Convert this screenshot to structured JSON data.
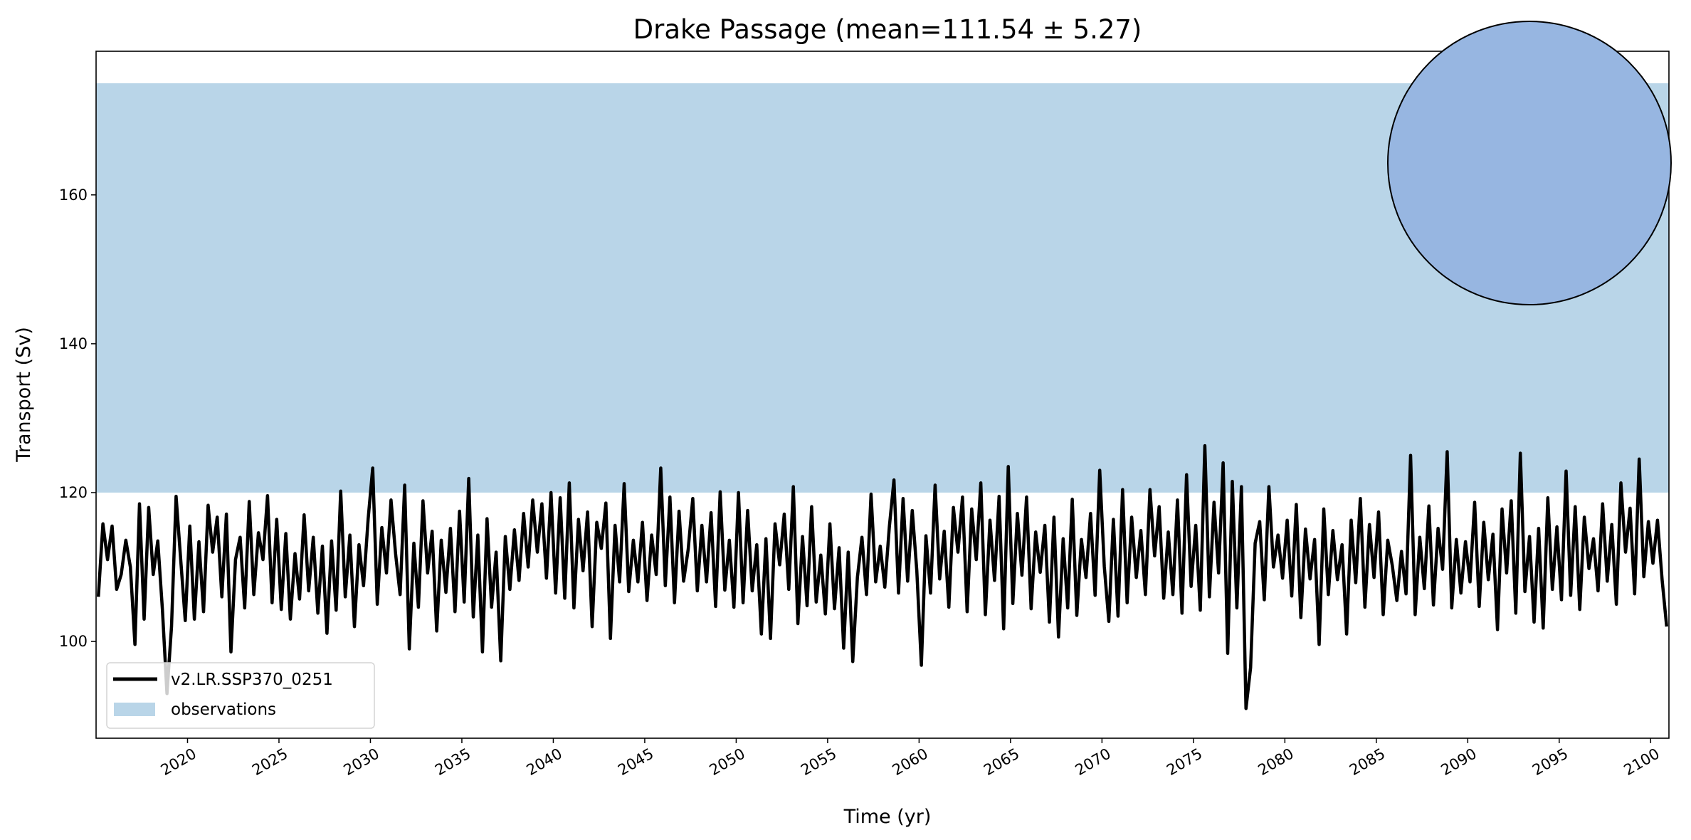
{
  "chart_data": {
    "type": "line",
    "title": "Drake Passage (mean=111.54 ± 5.27)",
    "xlabel": "Time (yr)",
    "ylabel": "Transport (Sv)",
    "xlim": [
      2015,
      2101
    ],
    "ylim": [
      87,
      179.3
    ],
    "xticks": [
      2020,
      2025,
      2030,
      2035,
      2040,
      2045,
      2050,
      2055,
      2060,
      2065,
      2070,
      2075,
      2080,
      2085,
      2090,
      2095,
      2100
    ],
    "yticks": [
      100,
      120,
      140,
      160
    ],
    "grid": false,
    "legend_placement": "lower-left",
    "observations_band": {
      "name": "observations",
      "ymin": 120,
      "ymax": 175,
      "color": "#b9d5e8"
    },
    "series": [
      {
        "name": "v2.LR.SSP370_0251",
        "color": "#000000",
        "x_start": 2015.125,
        "x_step": 0.25,
        "values": [
          106,
          115.8,
          111,
          115.5,
          107,
          109,
          113.6,
          110,
          99.6,
          118.5,
          103,
          118,
          109,
          113.5,
          104.3,
          93,
          102,
          119.5,
          111,
          102.8,
          115.5,
          103,
          113.4,
          104,
          118.3,
          112,
          116.7,
          106,
          117.1,
          98.6,
          111,
          114,
          104.5,
          118.8,
          106.3,
          114.6,
          111,
          119.6,
          105.2,
          116.4,
          104.3,
          114.5,
          103,
          111.8,
          105.7,
          117,
          106.8,
          114,
          103.8,
          112.8,
          101.1,
          113.5,
          104.2,
          120.2,
          106,
          114.3,
          102,
          113,
          107.5,
          116.5,
          123.3,
          105,
          115.3,
          109.2,
          119,
          111.8,
          106.3,
          121,
          99,
          113.2,
          104.6,
          118.9,
          109.2,
          114.8,
          101.4,
          113.6,
          106.6,
          115.2,
          104,
          117.5,
          105.3,
          121.9,
          103.3,
          114.3,
          98.6,
          116.5,
          104.6,
          112,
          97.4,
          114.1,
          107,
          115,
          108.2,
          117.2,
          110,
          119,
          112,
          118.5,
          108.5,
          120,
          106.5,
          119.3,
          105.8,
          121.3,
          104.5,
          116.4,
          109.5,
          117.4,
          102,
          116,
          112.5,
          118.6,
          100.4,
          115.6,
          108,
          121.2,
          106.7,
          113.6,
          108,
          116,
          105.5,
          114.3,
          109,
          123.3,
          107.5,
          119.4,
          105.2,
          117.5,
          108.1,
          112.4,
          119.2,
          106.8,
          115.6,
          108,
          117.3,
          104.7,
          120.1,
          106.9,
          113.6,
          104.6,
          120,
          105.2,
          117.6,
          106.8,
          113,
          101,
          113.8,
          100.4,
          115.8,
          110.3,
          117.1,
          107,
          120.8,
          102.4,
          114.1,
          104.8,
          118.1,
          105.3,
          111.6,
          103.7,
          115.8,
          104.4,
          112.6,
          99.1,
          112,
          97.3,
          108.6,
          114,
          106.3,
          119.8,
          108,
          112.8,
          107.3,
          115.4,
          121.7,
          106.5,
          119.2,
          108.1,
          117.6,
          109.5,
          96.8,
          114.2,
          106.5,
          121,
          108.4,
          114.8,
          104.6,
          118,
          112,
          119.4,
          104,
          117.8,
          111,
          121.3,
          103.6,
          116.3,
          108.2,
          119.5,
          101.7,
          123.5,
          105.1,
          117.2,
          108.9,
          119.4,
          104.4,
          114.7,
          109.3,
          115.6,
          102.6,
          116.7,
          100.6,
          113.8,
          104.5,
          119.1,
          103.5,
          113.7,
          108.6,
          117.2,
          106.2,
          123,
          110.1,
          102.7,
          116.4,
          103.4,
          120.4,
          105.2,
          116.7,
          108.6,
          114.9,
          106.3,
          120.4,
          111.5,
          118.1,
          105.8,
          114.7,
          106.3,
          119,
          103.8,
          122.4,
          107.4,
          115.6,
          104.2,
          126.3,
          106,
          118.7,
          109.2,
          124,
          98.4,
          121.5,
          104.5,
          120.8,
          91,
          96.5,
          113.2,
          116.1,
          105.6,
          120.8,
          110,
          114.3,
          108.5,
          116.3,
          106.1,
          118.4,
          103.2,
          115.1,
          108.4,
          113.7,
          99.6,
          117.8,
          106.3,
          114.9,
          108.3,
          113,
          101,
          116.3,
          107.9,
          119.2,
          104.6,
          115.7,
          108.6,
          117.4,
          103.6,
          113.6,
          110.2,
          105.5,
          112.1,
          106.4,
          125,
          103.6,
          114,
          107.1,
          118.2,
          104.9,
          115.2,
          109.7,
          125.5,
          104.5,
          113.7,
          106.5,
          113.4,
          108,
          118.7,
          104.7,
          116,
          108.3,
          114.4,
          101.6,
          117.8,
          109.2,
          118.9,
          103.8,
          125.3,
          106.7,
          114.1,
          102.6,
          115.2,
          101.8,
          119.3,
          107,
          115.4,
          105.6,
          122.9,
          106.2,
          118.1,
          104.3,
          116.7,
          109.8,
          113.8,
          106.8,
          118.5,
          108.1,
          115.7,
          105,
          121.3,
          112,
          117.9,
          106.4,
          124.5,
          108.7,
          116.1,
          110.5,
          116.3,
          108.3,
          102
        ]
      }
    ],
    "legend": [
      {
        "label": "v2.LR.SSP370_0251",
        "kind": "line",
        "color": "#000000"
      },
      {
        "label": "observations",
        "kind": "patch",
        "color": "#b9d5e8"
      }
    ],
    "inset_map": {
      "projection": "south-polar-stereographic",
      "ocean_color": "#97b6e1",
      "land_color": "#efefdb",
      "section_start_color": "#008000",
      "section_end_color": "#ff0000"
    }
  }
}
